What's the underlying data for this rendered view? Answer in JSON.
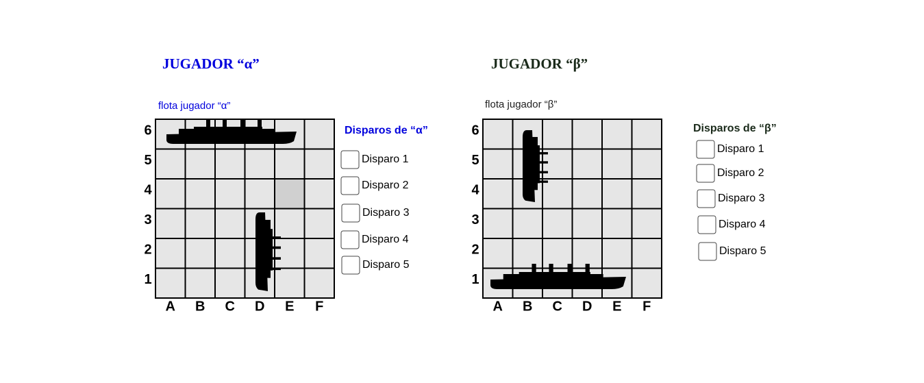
{
  "players": [
    {
      "title": "JUGADOR “α”",
      "fleet_label": "flota jugador “α”",
      "columns": [
        "A",
        "B",
        "C",
        "D",
        "E",
        "F"
      ],
      "rows": [
        "6",
        "5",
        "4",
        "3",
        "2",
        "1"
      ],
      "shots_heading": "Disparos de “α”",
      "shots": [
        "Disparo 1",
        "Disparo 2",
        "Disparo 3",
        "Disparo 4",
        "Disparo 5"
      ]
    },
    {
      "title": "JUGADOR “β”",
      "fleet_label": "flota jugador “β”",
      "columns": [
        "A",
        "B",
        "C",
        "D",
        "E",
        "F"
      ],
      "rows": [
        "6",
        "5",
        "4",
        "3",
        "2",
        "1"
      ],
      "shots_heading": "Disparos de “β”",
      "shots": [
        "Disparo 1",
        "Disparo 2",
        "Disparo 3",
        "Disparo 4",
        "Disparo 5"
      ]
    }
  ]
}
